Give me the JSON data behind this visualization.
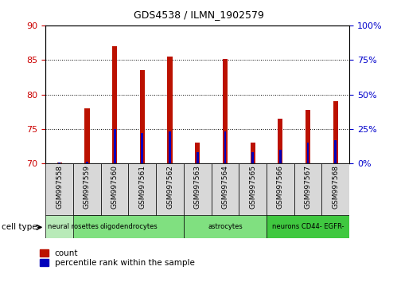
{
  "title": "GDS4538 / ILMN_1902579",
  "samples": [
    "GSM997558",
    "GSM997559",
    "GSM997560",
    "GSM997561",
    "GSM997562",
    "GSM997563",
    "GSM997564",
    "GSM997565",
    "GSM997566",
    "GSM997567",
    "GSM997568"
  ],
  "count_values": [
    70.1,
    78.0,
    87.0,
    83.5,
    85.5,
    73.0,
    85.1,
    73.0,
    76.5,
    77.8,
    79.0
  ],
  "percentile_values": [
    0.8,
    1.5,
    25.0,
    22.0,
    23.0,
    8.0,
    23.0,
    8.0,
    10.0,
    15.0,
    17.0
  ],
  "ymin": 70,
  "ymax": 90,
  "yticks_left": [
    70,
    75,
    80,
    85,
    90
  ],
  "yticks_right": [
    0,
    25,
    50,
    75,
    100
  ],
  "cell_type_groups": [
    {
      "label": "neural rosettes",
      "start": 0,
      "end": 1,
      "color": "#b8eab8"
    },
    {
      "label": "oligodendrocytes",
      "start": 1,
      "end": 4,
      "color": "#80e080"
    },
    {
      "label": "astrocytes",
      "start": 5,
      "end": 7,
      "color": "#80e080"
    },
    {
      "label": "neurons CD44- EGFR-",
      "start": 8,
      "end": 10,
      "color": "#40c840"
    }
  ],
  "bar_color_red": "#bb1100",
  "bar_color_blue": "#0000bb",
  "red_bar_width": 0.18,
  "blue_bar_width": 0.08,
  "cell_type_label": "cell type",
  "legend_count": "count",
  "legend_percentile": "percentile rank within the sample",
  "left_axis_color": "#cc0000",
  "right_axis_color": "#0000cc",
  "background_cell": "#d8d8d8"
}
